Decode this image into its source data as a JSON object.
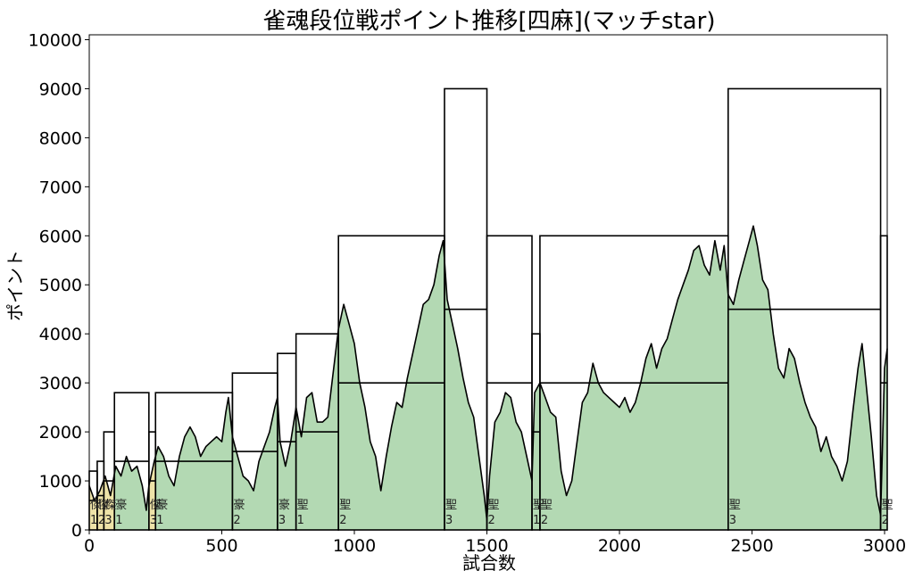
{
  "chart_data": {
    "type": "area",
    "title": "雀魂段位戦ポイント推移[四麻](マッチstar)",
    "xlabel": "試合数",
    "ylabel": "ポイント",
    "xlim": [
      0,
      3010
    ],
    "ylim": [
      0,
      10100
    ],
    "xticks": [
      0,
      500,
      1000,
      1500,
      2000,
      2500,
      3000
    ],
    "yticks": [
      0,
      1000,
      2000,
      3000,
      4000,
      5000,
      6000,
      7000,
      8000,
      9000,
      10000
    ],
    "grid": false,
    "fill_color": "#b3d9b3",
    "early_fill_color": "#eee3a8",
    "line_color": "#000000",
    "points": [
      [
        0,
        900
      ],
      [
        20,
        600
      ],
      [
        40,
        800
      ],
      [
        60,
        1100
      ],
      [
        80,
        700
      ],
      [
        100,
        1300
      ],
      [
        120,
        1100
      ],
      [
        140,
        1500
      ],
      [
        160,
        1200
      ],
      [
        180,
        1300
      ],
      [
        200,
        900
      ],
      [
        215,
        400
      ],
      [
        225,
        900
      ],
      [
        245,
        1400
      ],
      [
        260,
        1700
      ],
      [
        280,
        1500
      ],
      [
        300,
        1100
      ],
      [
        320,
        900
      ],
      [
        340,
        1500
      ],
      [
        360,
        1900
      ],
      [
        380,
        2100
      ],
      [
        400,
        1900
      ],
      [
        420,
        1500
      ],
      [
        440,
        1700
      ],
      [
        460,
        1800
      ],
      [
        480,
        1900
      ],
      [
        500,
        1800
      ],
      [
        515,
        2400
      ],
      [
        525,
        2700
      ],
      [
        540,
        1900
      ],
      [
        560,
        1500
      ],
      [
        580,
        1100
      ],
      [
        600,
        1000
      ],
      [
        620,
        800
      ],
      [
        640,
        1400
      ],
      [
        660,
        1700
      ],
      [
        680,
        2000
      ],
      [
        700,
        2500
      ],
      [
        710,
        2700
      ],
      [
        720,
        1800
      ],
      [
        740,
        1300
      ],
      [
        760,
        1800
      ],
      [
        780,
        2500
      ],
      [
        800,
        1900
      ],
      [
        820,
        2700
      ],
      [
        840,
        2800
      ],
      [
        860,
        2200
      ],
      [
        880,
        2200
      ],
      [
        900,
        2300
      ],
      [
        920,
        3200
      ],
      [
        940,
        4100
      ],
      [
        960,
        4600
      ],
      [
        980,
        4200
      ],
      [
        1000,
        3800
      ],
      [
        1020,
        3000
      ],
      [
        1040,
        2500
      ],
      [
        1060,
        1800
      ],
      [
        1080,
        1500
      ],
      [
        1100,
        800
      ],
      [
        1120,
        1500
      ],
      [
        1140,
        2100
      ],
      [
        1160,
        2600
      ],
      [
        1180,
        2500
      ],
      [
        1200,
        3100
      ],
      [
        1220,
        3600
      ],
      [
        1240,
        4100
      ],
      [
        1260,
        4600
      ],
      [
        1280,
        4700
      ],
      [
        1300,
        5000
      ],
      [
        1320,
        5600
      ],
      [
        1335,
        5900
      ],
      [
        1350,
        4700
      ],
      [
        1370,
        4200
      ],
      [
        1390,
        3700
      ],
      [
        1410,
        3100
      ],
      [
        1430,
        2600
      ],
      [
        1450,
        2300
      ],
      [
        1470,
        1500
      ],
      [
        1490,
        700
      ],
      [
        1500,
        200
      ],
      [
        1510,
        1100
      ],
      [
        1530,
        2200
      ],
      [
        1550,
        2400
      ],
      [
        1570,
        2800
      ],
      [
        1590,
        2700
      ],
      [
        1610,
        2200
      ],
      [
        1630,
        2000
      ],
      [
        1650,
        1500
      ],
      [
        1670,
        1000
      ],
      [
        1680,
        2800
      ],
      [
        1700,
        3000
      ],
      [
        1720,
        2700
      ],
      [
        1740,
        2400
      ],
      [
        1760,
        2300
      ],
      [
        1780,
        1200
      ],
      [
        1800,
        700
      ],
      [
        1820,
        1000
      ],
      [
        1840,
        1800
      ],
      [
        1860,
        2600
      ],
      [
        1880,
        2800
      ],
      [
        1900,
        3400
      ],
      [
        1920,
        3000
      ],
      [
        1940,
        2800
      ],
      [
        1960,
        2700
      ],
      [
        1980,
        2600
      ],
      [
        2000,
        2500
      ],
      [
        2020,
        2700
      ],
      [
        2040,
        2400
      ],
      [
        2060,
        2600
      ],
      [
        2080,
        3000
      ],
      [
        2100,
        3500
      ],
      [
        2120,
        3800
      ],
      [
        2140,
        3300
      ],
      [
        2160,
        3700
      ],
      [
        2180,
        3900
      ],
      [
        2200,
        4300
      ],
      [
        2220,
        4700
      ],
      [
        2240,
        5000
      ],
      [
        2260,
        5300
      ],
      [
        2280,
        5700
      ],
      [
        2300,
        5800
      ],
      [
        2320,
        5400
      ],
      [
        2340,
        5200
      ],
      [
        2360,
        5900
      ],
      [
        2380,
        5300
      ],
      [
        2395,
        5800
      ],
      [
        2410,
        4800
      ],
      [
        2430,
        4600
      ],
      [
        2450,
        5100
      ],
      [
        2470,
        5500
      ],
      [
        2490,
        5900
      ],
      [
        2505,
        6200
      ],
      [
        2520,
        5800
      ],
      [
        2540,
        5100
      ],
      [
        2560,
        4900
      ],
      [
        2580,
        4000
      ],
      [
        2600,
        3300
      ],
      [
        2620,
        3100
      ],
      [
        2640,
        3700
      ],
      [
        2660,
        3500
      ],
      [
        2680,
        3000
      ],
      [
        2700,
        2600
      ],
      [
        2720,
        2300
      ],
      [
        2740,
        2100
      ],
      [
        2760,
        1600
      ],
      [
        2780,
        1900
      ],
      [
        2800,
        1500
      ],
      [
        2820,
        1300
      ],
      [
        2840,
        1000
      ],
      [
        2860,
        1400
      ],
      [
        2880,
        2400
      ],
      [
        2900,
        3300
      ],
      [
        2915,
        3800
      ],
      [
        2930,
        3000
      ],
      [
        2950,
        1900
      ],
      [
        2970,
        700
      ],
      [
        2985,
        300
      ],
      [
        3000,
        3300
      ],
      [
        3010,
        3700
      ]
    ],
    "rank_segments": [
      {
        "start": 0,
        "end": 30,
        "base": 600,
        "top": 1200,
        "label": "傑",
        "level": "1",
        "early": true
      },
      {
        "start": 30,
        "end": 55,
        "base": 700,
        "top": 1400,
        "label": "傑",
        "level": "2",
        "early": true
      },
      {
        "start": 55,
        "end": 95,
        "base": 1000,
        "top": 2000,
        "label": "傑",
        "level": "3",
        "early": true
      },
      {
        "start": 95,
        "end": 225,
        "base": 1400,
        "top": 2800,
        "label": "豪",
        "level": "1",
        "early": false
      },
      {
        "start": 225,
        "end": 250,
        "base": 1000,
        "top": 2000,
        "label": "傑",
        "level": "3",
        "early": true
      },
      {
        "start": 250,
        "end": 540,
        "base": 1400,
        "top": 2800,
        "label": "豪",
        "level": "1",
        "early": false
      },
      {
        "start": 540,
        "end": 710,
        "base": 1600,
        "top": 3200,
        "label": "豪",
        "level": "2",
        "early": false
      },
      {
        "start": 710,
        "end": 780,
        "base": 1800,
        "top": 3600,
        "label": "豪",
        "level": "3",
        "early": false
      },
      {
        "start": 780,
        "end": 940,
        "base": 2000,
        "top": 4000,
        "label": "聖",
        "level": "1",
        "early": false
      },
      {
        "start": 940,
        "end": 1340,
        "base": 3000,
        "top": 6000,
        "label": "聖",
        "level": "2",
        "early": false
      },
      {
        "start": 1340,
        "end": 1500,
        "base": 4500,
        "top": 9000,
        "label": "聖",
        "level": "3",
        "early": false
      },
      {
        "start": 1500,
        "end": 1670,
        "base": 3000,
        "top": 6000,
        "label": "聖",
        "level": "2",
        "early": false
      },
      {
        "start": 1670,
        "end": 1700,
        "base": 2000,
        "top": 4000,
        "label": "聖",
        "level": "1",
        "early": false
      },
      {
        "start": 1700,
        "end": 2410,
        "base": 3000,
        "top": 6000,
        "label": "聖",
        "level": "2",
        "early": false
      },
      {
        "start": 2410,
        "end": 2985,
        "base": 4500,
        "top": 9000,
        "label": "聖",
        "level": "3",
        "early": false
      },
      {
        "start": 2985,
        "end": 3010,
        "base": 3000,
        "top": 6000,
        "label": "聖",
        "level": "2",
        "early": false
      }
    ]
  }
}
